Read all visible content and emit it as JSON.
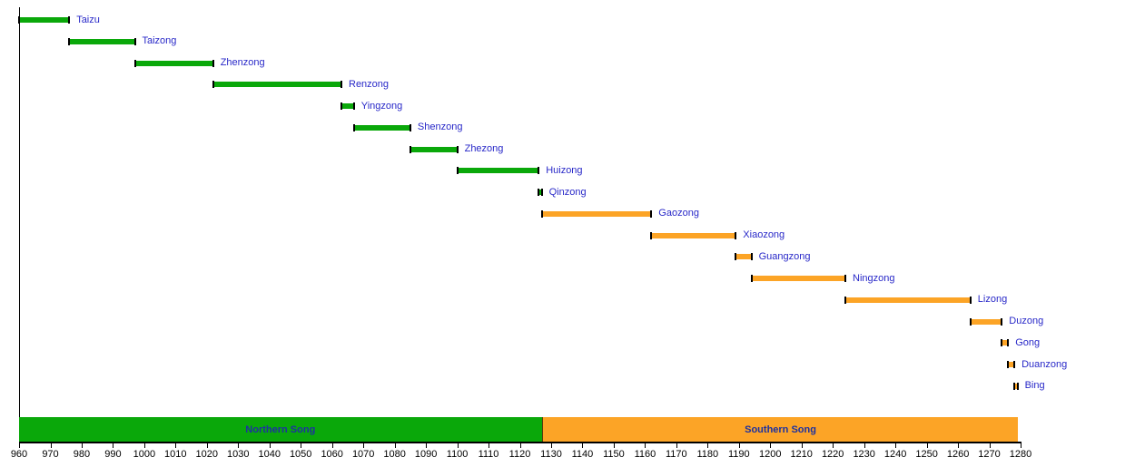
{
  "chart_data": {
    "type": "timeline",
    "title": "",
    "xlabel": "",
    "grid": false,
    "legend_position": "none",
    "axis": {
      "min": 960,
      "max": 1280,
      "tick_step": 10,
      "ticks": [
        960,
        970,
        980,
        990,
        1000,
        1010,
        1020,
        1030,
        1040,
        1050,
        1060,
        1070,
        1080,
        1090,
        1100,
        1110,
        1120,
        1130,
        1140,
        1150,
        1160,
        1170,
        1180,
        1190,
        1200,
        1210,
        1220,
        1230,
        1240,
        1250,
        1260,
        1270,
        1280
      ]
    },
    "groups": [
      {
        "name": "Northern Song",
        "color": "#0AA80A",
        "start": 960,
        "end": 1127
      },
      {
        "name": "Southern Song",
        "color": "#FCA426",
        "start": 1127,
        "end": 1279
      }
    ],
    "series": [
      {
        "name": "Taizu",
        "start": 960,
        "end": 976,
        "group": "Northern Song"
      },
      {
        "name": "Taizong",
        "start": 976,
        "end": 997,
        "group": "Northern Song"
      },
      {
        "name": "Zhenzong",
        "start": 997,
        "end": 1022,
        "group": "Northern Song"
      },
      {
        "name": "Renzong",
        "start": 1022,
        "end": 1063,
        "group": "Northern Song"
      },
      {
        "name": "Yingzong",
        "start": 1063,
        "end": 1067,
        "group": "Northern Song"
      },
      {
        "name": "Shenzong",
        "start": 1067,
        "end": 1085,
        "group": "Northern Song"
      },
      {
        "name": "Zhezong",
        "start": 1085,
        "end": 1100,
        "group": "Northern Song"
      },
      {
        "name": "Huizong",
        "start": 1100,
        "end": 1126,
        "group": "Northern Song"
      },
      {
        "name": "Qinzong",
        "start": 1126,
        "end": 1127,
        "group": "Northern Song"
      },
      {
        "name": "Gaozong",
        "start": 1127,
        "end": 1162,
        "group": "Southern Song"
      },
      {
        "name": "Xiaozong",
        "start": 1162,
        "end": 1189,
        "group": "Southern Song"
      },
      {
        "name": "Guangzong",
        "start": 1189,
        "end": 1194,
        "group": "Southern Song"
      },
      {
        "name": "Ningzong",
        "start": 1194,
        "end": 1224,
        "group": "Southern Song"
      },
      {
        "name": "Lizong",
        "start": 1224,
        "end": 1264,
        "group": "Southern Song"
      },
      {
        "name": "Duzong",
        "start": 1264,
        "end": 1274,
        "group": "Southern Song"
      },
      {
        "name": "Gong",
        "start": 1274,
        "end": 1276,
        "group": "Southern Song"
      },
      {
        "name": "Duanzong",
        "start": 1276,
        "end": 1278,
        "group": "Southern Song"
      },
      {
        "name": "Bing",
        "start": 1278,
        "end": 1279,
        "group": "Southern Song"
      }
    ],
    "colors": {
      "northern_song": "#0AA80A",
      "southern_song": "#FCA426",
      "bar_end_cap": "#000000",
      "emperor_label": "#2828C8",
      "band_label": "#1E32A0",
      "axis": "#000000",
      "background": "#FFFFFF"
    }
  }
}
